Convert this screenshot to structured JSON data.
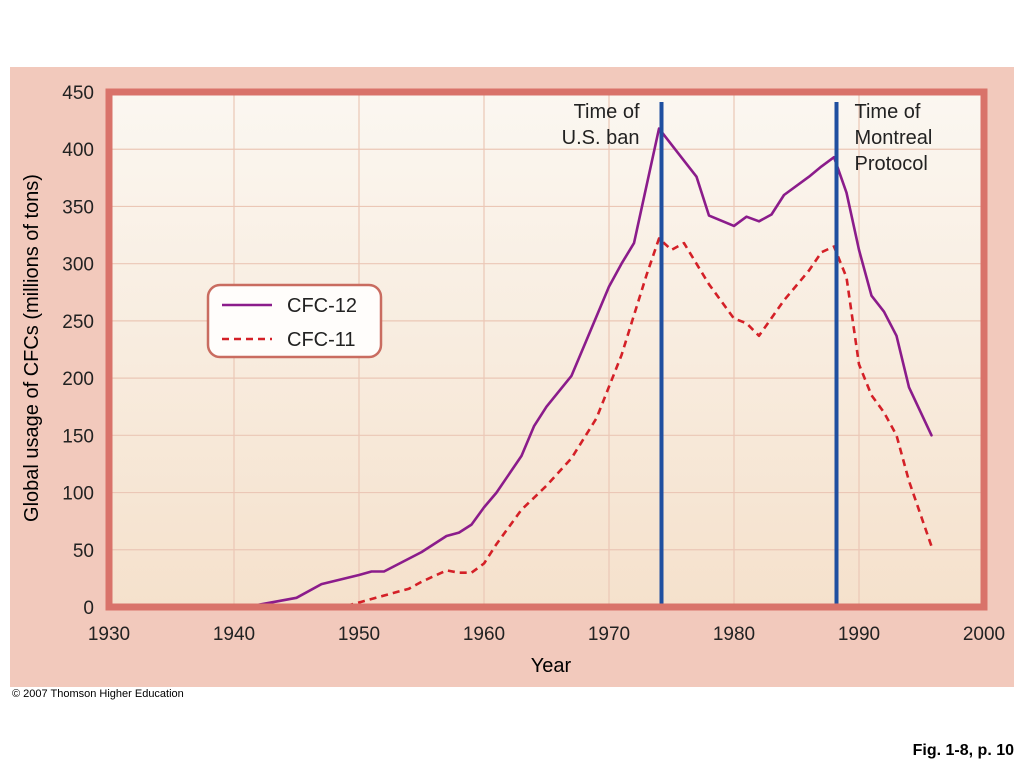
{
  "chart_data": {
    "type": "line",
    "title": "",
    "xlabel": "Year",
    "ylabel": "Global usage of CFCs (millions of tons)",
    "xlim": [
      1930,
      2000
    ],
    "ylim": [
      0,
      450
    ],
    "x_ticks": [
      1930,
      1940,
      1950,
      1960,
      1970,
      1980,
      1990,
      2000
    ],
    "y_ticks": [
      0,
      50,
      100,
      150,
      200,
      250,
      300,
      350,
      400,
      450
    ],
    "grid": true,
    "legend_position": "left-middle",
    "series": [
      {
        "name": "CFC-12",
        "style": "solid",
        "color": "#8B1C8B",
        "x": [
          1941,
          1945,
          1947,
          1950,
          1951,
          1952,
          1955,
          1957,
          1958,
          1959,
          1960,
          1961,
          1963,
          1964,
          1965,
          1967,
          1968,
          1970,
          1971,
          1972,
          1974,
          1976,
          1977,
          1978,
          1980,
          1981,
          1982,
          1983,
          1984,
          1986,
          1987,
          1988,
          1989,
          1990,
          1991,
          1992,
          1993,
          1994,
          1995.8
        ],
        "y": [
          0,
          8,
          20,
          28,
          31,
          31,
          48,
          62,
          65,
          72,
          87,
          100,
          132,
          158,
          175,
          202,
          228,
          280,
          300,
          318,
          418,
          390,
          376,
          342,
          333,
          341,
          337,
          343,
          360,
          376,
          385,
          393,
          362,
          312,
          272,
          258,
          237,
          192,
          150
        ]
      },
      {
        "name": "CFC-11",
        "style": "dashed",
        "color": "#D42027",
        "x": [
          1949,
          1951,
          1954,
          1955,
          1957,
          1958,
          1959,
          1960,
          1961,
          1963,
          1965,
          1967,
          1969,
          1971,
          1973,
          1974,
          1975,
          1976,
          1978,
          1980,
          1981,
          1982,
          1984,
          1986,
          1987,
          1988,
          1989,
          1990,
          1991,
          1992,
          1993,
          1994,
          1995.8
        ],
        "y": [
          1,
          7,
          16,
          22,
          32,
          30,
          30,
          38,
          55,
          85,
          106,
          130,
          165,
          220,
          290,
          322,
          312,
          318,
          282,
          252,
          248,
          237,
          268,
          294,
          310,
          315,
          288,
          212,
          185,
          170,
          150,
          110,
          53
        ]
      }
    ],
    "annotations": [
      {
        "x": 1974.2,
        "label_lines": [
          "Time of",
          "U.S. ban"
        ],
        "color": "#1F4FA0"
      },
      {
        "x": 1988.2,
        "label_lines": [
          "Time of",
          "Montreal",
          "Protocol"
        ],
        "color": "#1F4FA0"
      }
    ],
    "colors": {
      "outer_panel": "#F2C9BC",
      "frame": "#D9736A",
      "plot_bg_top": "#FBF7F1",
      "plot_bg_bottom": "#F5E1CC",
      "gridline": "#EBC7B6",
      "legend_border": "#C96C60",
      "axis_text": "#222222"
    }
  },
  "footer": {
    "copyright": "© 2007 Thomson Higher Education",
    "figure_ref": "Fig. 1-8, p. 10"
  }
}
